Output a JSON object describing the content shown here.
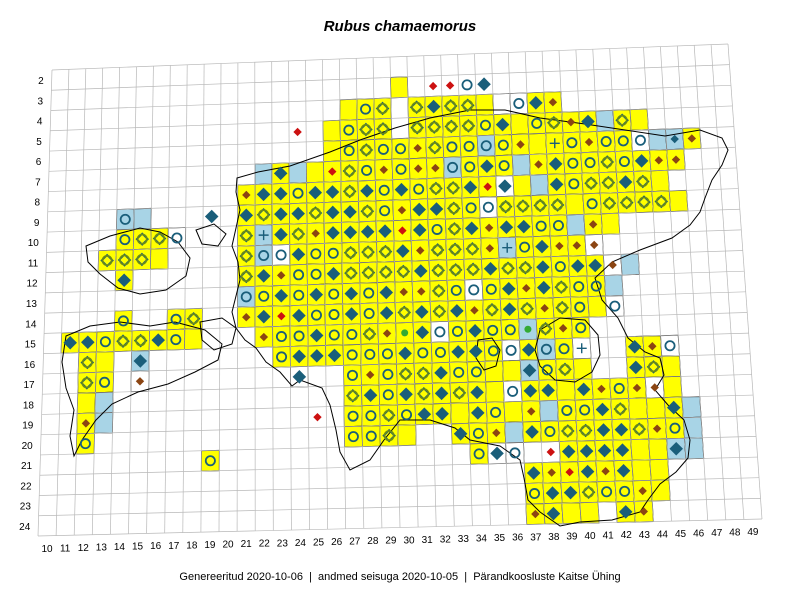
{
  "title": "Rubus chamaemorus",
  "footer": {
    "generated": "Genereeritud 2020-10-06",
    "data_state": "andmed seisuga 2020-10-05",
    "organization": "Pärandkoosluste Kaitse Ühing",
    "separator": "|"
  },
  "axes": {
    "columns": [
      10,
      11,
      12,
      13,
      14,
      15,
      16,
      17,
      18,
      19,
      20,
      21,
      22,
      23,
      24,
      25,
      26,
      27,
      28,
      29,
      30,
      31,
      32,
      33,
      34,
      35,
      36,
      37,
      38,
      39,
      40,
      41,
      42,
      43,
      44,
      45,
      46,
      47,
      48,
      49
    ],
    "rows": [
      2,
      3,
      4,
      5,
      6,
      7,
      8,
      9,
      10,
      11,
      12,
      13,
      14,
      15,
      16,
      17,
      18,
      19,
      20,
      21,
      22,
      23,
      24
    ]
  },
  "colors": {
    "cell_yellow": "#ffff00",
    "cell_blue": "#a8d4e6",
    "cell_white": "#ffffff",
    "grid": "#b8b8b8",
    "coast": "#000000",
    "marker_teal": "#1a5e7a",
    "marker_olive": "#6a8a1a",
    "marker_brown": "#8b4513",
    "marker_red": "#cc1111",
    "marker_green": "#33aa33"
  },
  "legend_marker_types": [
    "ring",
    "diamond-ring",
    "diamond-teal",
    "diamond-brown",
    "diamond-red",
    "circle-teal",
    "plus"
  ],
  "cells": {
    "3": [
      "30y",
      "32r",
      "33r",
      "34o",
      "35d"
    ],
    "4": [
      "27y",
      "28yo",
      "29ydo",
      "31ydo",
      "32yd",
      "33ydo",
      "34ydo",
      "35y",
      "36w",
      "37wo",
      "38yd",
      "39yb"
    ],
    "5": [
      "24r",
      "26y",
      "27yo",
      "28ydo",
      "29ydo",
      "31ydo",
      "32ydo",
      "33ydo",
      "34ydo",
      "35yo",
      "36yd",
      "37y",
      "38yo",
      "39ydo",
      "40yb",
      "41yd",
      "42b",
      "43ydo",
      "44y"
    ],
    "6": [
      "26y",
      "27yo",
      "28ydo",
      "29yo",
      "30yo",
      "31yb",
      "32ydo",
      "33yo",
      "34yo",
      "35bo",
      "36yo",
      "37yb",
      "38y",
      "39yp",
      "40yo",
      "41yb",
      "42yo",
      "43yo",
      "44wo",
      "45b",
      "46bb",
      "47yb"
    ],
    "7": [
      "22b",
      "23yd",
      "24b",
      "25y",
      "26yr",
      "27ydo",
      "28yo",
      "29yb",
      "30yo",
      "31yb",
      "32yb",
      "33bo",
      "34yo",
      "35yd",
      "36yo",
      "37b",
      "38yb",
      "39yd",
      "40yo",
      "41yo",
      "42ydo",
      "43yo",
      "44yd",
      "45yb",
      "46yb"
    ],
    "8": [
      "21yb",
      "22yd",
      "23yd",
      "24yo",
      "25yd",
      "26yd",
      "27ydo",
      "28yd",
      "29yo",
      "30yd",
      "31yo",
      "32ydo",
      "33ydo",
      "34yd",
      "35yr",
      "36wd",
      "37y",
      "38b",
      "39yd",
      "40yo",
      "41ydo",
      "42ydo",
      "43yd",
      "44ydo",
      "45y"
    ],
    "9": [
      "14bo",
      "15b",
      "19d",
      "21yd",
      "22ydo",
      "23yd",
      "24yd",
      "25ydo",
      "26yd",
      "27yd",
      "28ydo",
      "29yo",
      "30yb",
      "31yd",
      "32yd",
      "33ydo",
      "34yo",
      "35wo",
      "36ydo",
      "37ydo",
      "38ydo",
      "39ydo",
      "40y",
      "41yo",
      "42ydo",
      "43ydo",
      "44ydo",
      "45ydo",
      "46y"
    ],
    "10": [
      "14yo",
      "15ydo",
      "16ydo",
      "17wo",
      "21ydo",
      "22bp",
      "23yd",
      "24ydo",
      "25yb",
      "26yd",
      "27yd",
      "28yd",
      "29yd",
      "30yr",
      "31yd",
      "32yo",
      "33ydo",
      "34yd",
      "35yb",
      "36yd",
      "37yd",
      "38yo",
      "39yo",
      "40b",
      "41yb",
      "42y"
    ],
    "11": [
      "13ydo",
      "14ydo",
      "15ydo",
      "16y",
      "21ydo",
      "22bo",
      "23wo",
      "24yd",
      "25yo",
      "26yo",
      "27ydo",
      "28ydo",
      "29ydo",
      "30yd",
      "31yb",
      "32ydo",
      "33ydo",
      "34ydo",
      "35yb",
      "36bp",
      "37yo",
      "38yd",
      "39yb",
      "40yb",
      "41wb"
    ],
    "12": [
      "14yd",
      "21ydo",
      "22yd",
      "23yb",
      "24yo",
      "25yo",
      "26yd",
      "27ydo",
      "28ydo",
      "29ydo",
      "30ydo",
      "31yd",
      "32ydo",
      "33ydo",
      "34ydo",
      "35yd",
      "36ydo",
      "37ydo",
      "38yd",
      "39yo",
      "40yd",
      "41yd",
      "42wb",
      "43b"
    ],
    "13": [
      "21bo",
      "22yo",
      "23yd",
      "24yo",
      "25yd",
      "26yo",
      "27yd",
      "28ybo",
      "29ywd",
      "30yb",
      "31yb",
      "32ydo",
      "33yo",
      "34wo",
      "35yo",
      "36yd",
      "37yb",
      "38yd",
      "39ydo",
      "40yo",
      "41yo",
      "42b"
    ],
    "14": [
      "14yo",
      "17yo",
      "18ydo",
      "21yb",
      "22yd",
      "23yr",
      "24yd",
      "25yo",
      "26yo",
      "27yd",
      "28yo",
      "29yd",
      "30ydo",
      "31yd",
      "32ydo",
      "33yd",
      "34yb",
      "35ydo",
      "36yd",
      "37ydo",
      "38yb",
      "39ydo",
      "40yo",
      "41y",
      "42wo"
    ],
    "15": [
      "11yd",
      "12yd",
      "13yo",
      "14ydo",
      "15ydo",
      "16yd",
      "17yo",
      "18y",
      "22yb",
      "23yo",
      "24yo",
      "25yd",
      "26yo",
      "27yo",
      "28ydo",
      "29yb",
      "30yg",
      "31yd",
      "32wo",
      "33yo",
      "34yd",
      "35yo",
      "36ybo",
      "37bg",
      "38ydo",
      "39yb",
      "40yo"
    ],
    "16": [
      "12ydo",
      "13y",
      "15bd",
      "23yo",
      "24yd",
      "25yd",
      "26yd",
      "27yo",
      "28yo",
      "29yo",
      "30yd",
      "31yo",
      "32yo",
      "33yd",
      "34yd",
      "35yo",
      "36wo",
      "37yd",
      "38bo",
      "39yo",
      "40wp",
      "43yd",
      "44yb",
      "45wo"
    ],
    "17": [
      "12ydo",
      "13yo",
      "15wb",
      "24wd",
      "27yo",
      "28yb",
      "29yo",
      "30ydo",
      "31ydo",
      "32yd",
      "33yo",
      "34yo",
      "35y",
      "36y",
      "37bd",
      "38yo",
      "39ydo",
      "40y",
      "43yd",
      "44ydo",
      "45y"
    ],
    "18": [
      "12y",
      "13b",
      "27ydo",
      "28yd",
      "29yo",
      "30yd",
      "31ydo",
      "32yd",
      "33ydo",
      "34yd",
      "35y",
      "36wo",
      "37yd",
      "38yd",
      "39y",
      "40yd",
      "41yb",
      "42yo",
      "43yb",
      "44wb",
      "45y"
    ],
    "19": [
      "12yb",
      "13b",
      "25r",
      "27yo",
      "28yo",
      "29ydo",
      "30yo",
      "31yd",
      "32yd",
      "33y",
      "34yd",
      "35yo",
      "36y",
      "37yb",
      "38b",
      "39yo",
      "40yo",
      "41yd",
      "42ydo",
      "43y",
      "44y",
      "45yd",
      "46b"
    ],
    "20": [
      "12yo",
      "27yo",
      "28yo",
      "29ydo",
      "30y",
      "33yd",
      "34yo",
      "35yb",
      "36b",
      "37yd",
      "38yo",
      "39ydo",
      "40ydo",
      "41yd",
      "42yd",
      "43ydo",
      "44yb",
      "45yo",
      "46b"
    ],
    "21": [
      "19yo",
      "34yo",
      "35wd",
      "36wo",
      "38r",
      "39yd",
      "40yd",
      "41yd",
      "42yd",
      "43y",
      "44y",
      "45bd",
      "46b"
    ],
    "22": [
      "37yd",
      "38yb",
      "39yr",
      "40yd",
      "41yb",
      "42yd",
      "43y",
      "44y"
    ],
    "23": [
      "37yo",
      "38yd",
      "39yd",
      "40ydo",
      "41yo",
      "42yo",
      "43yb",
      "44y"
    ],
    "24": [
      "37yb",
      "38yd",
      "39y",
      "40y",
      "42yd",
      "43yb"
    ]
  }
}
